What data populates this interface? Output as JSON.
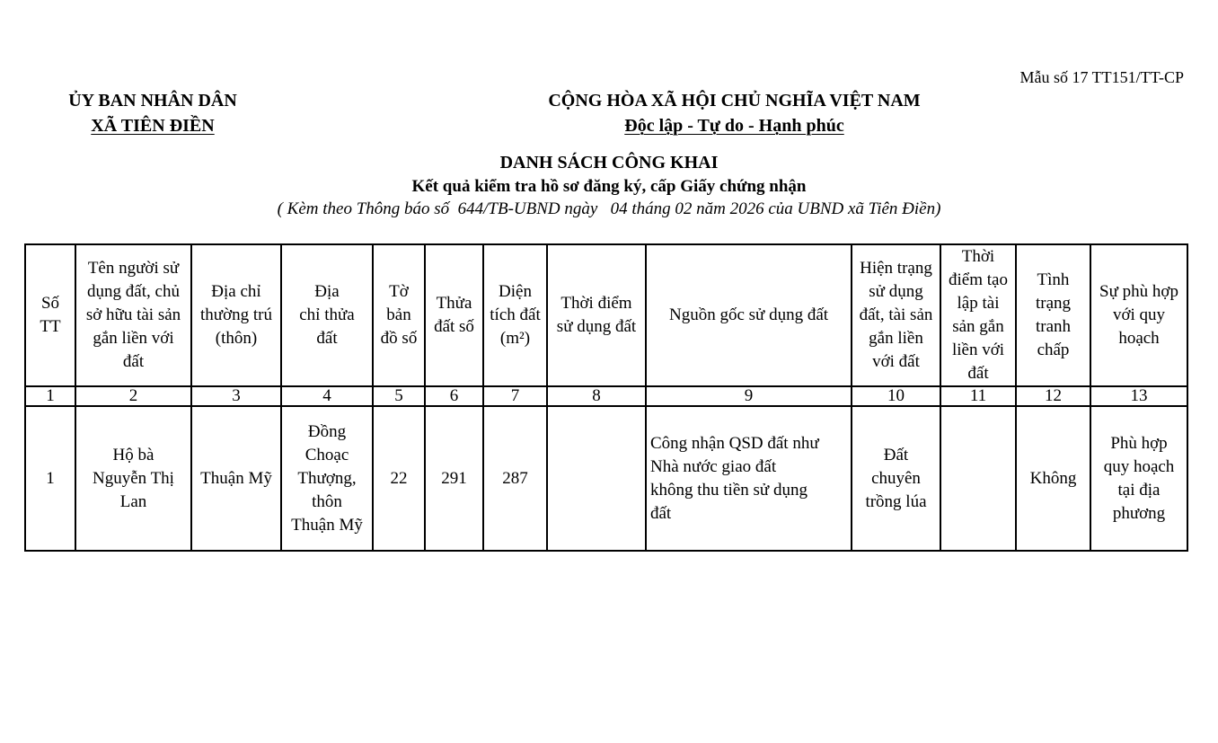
{
  "form_number": "Mẫu số 17 TT151/TT-CP",
  "agency": {
    "line1": "ỦY BAN NHÂN DÂN",
    "line2": "XÃ TIÊN ĐIỀN"
  },
  "nation": {
    "line1": "CỘNG HÒA XÃ HỘI CHỦ NGHĨA VIỆT NAM",
    "line2": "Độc lập - Tự do - Hạnh phúc"
  },
  "title": "DANH SÁCH CÔNG KHAI",
  "subtitle": "Kết quả kiểm tra hồ sơ đăng ký, cấp Giấy chứng nhận",
  "reference": "( Kèm theo Thông báo số  644/TB-UBND ngày   04 tháng 02 năm 2026 của UBND xã Tiên Điền)",
  "table": {
    "headers": [
      "Số\nTT",
      "Tên người sử\ndụng đất, chủ\nsở hữu tài sản\ngắn liền với\nđất",
      "Địa chỉ\nthường trú\n(thôn)",
      "Địa\nchỉ thửa\nđất",
      "Tờ\nbản\nđồ số",
      "Thửa\nđất số",
      "Diện\ntích đất\n(m²)",
      "Thời điểm\nsử dụng đất",
      "Nguồn gốc sử dụng đất",
      "Hiện trạng\nsử dụng\nđất, tài sản\ngắn liền\nvới đất",
      "Thời\nđiểm tạo\nlập tài\nsản gắn\nliền với\nđất",
      "Tình\ntrạng\ntranh\nchấp",
      "Sự phù hợp\nvới quy\nhoạch"
    ],
    "column_numbers": [
      "1",
      "2",
      "3",
      "4",
      "5",
      "6",
      "7",
      "8",
      "9",
      "10",
      "11",
      "12",
      "13"
    ],
    "rows": [
      [
        "1",
        "Hộ bà\nNguyễn Thị\nLan",
        "Thuận Mỹ",
        "Đồng\nChoạc\nThượng,\nthôn\nThuận Mỹ",
        "22",
        "291",
        "287",
        "",
        "Công nhận QSD đất như\nNhà nước giao đất\nkhông thu tiền sử dụng\nđất",
        "Đất\nchuyên\ntrồng lúa",
        "",
        "Không",
        "Phù hợp\nquy hoạch\ntại địa\nphương"
      ]
    ]
  }
}
